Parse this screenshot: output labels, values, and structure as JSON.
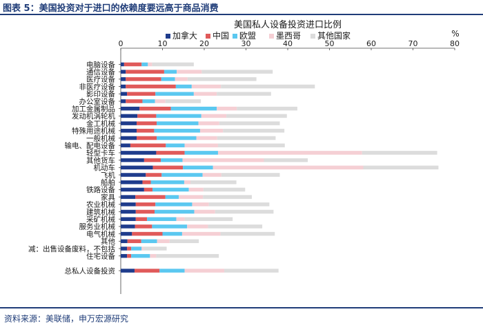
{
  "header": {
    "title": "图表 5：美国投资对于进口的依赖度要远高于商品消费"
  },
  "footer": {
    "source": "资料来源：美联储，申万宏源研究"
  },
  "chart_data": {
    "type": "bar",
    "orientation": "horizontal",
    "stacked": true,
    "title": "美国私人设备投资进口比例",
    "unit": "%",
    "xlim": [
      0,
      80
    ],
    "xticks": [
      0,
      10,
      20,
      30,
      40,
      50,
      60,
      70,
      80
    ],
    "grid": false,
    "legend_position": "top",
    "categories": [
      "电脑设备",
      "通信设备",
      "医疗设备",
      "非医疗设备",
      "影印设备",
      "办公室设备",
      "加工金属制品",
      "发动机涡轮机",
      "金工机械",
      "特殊用途机械",
      "一般机械",
      "输电、配电设备",
      "轻型卡车",
      "其他货车",
      "机动车",
      "飞机",
      "船舶",
      "铁路设备",
      "家具",
      "农业机械",
      "建筑机械",
      "采矿机械",
      "服务业机械",
      "电气机械",
      "其他",
      "减：出售设备废料，不包括",
      "住宅设备",
      "",
      "总私人设备投资"
    ],
    "series": [
      {
        "name": "加拿大",
        "color": "#1f3c8c",
        "values": [
          0.8,
          1.2,
          1.2,
          1.2,
          1.5,
          1.2,
          4.5,
          4.0,
          3.8,
          3.8,
          3.8,
          2.3,
          8.5,
          5.6,
          7.7,
          6.0,
          5.2,
          5.6,
          3.5,
          3.6,
          3.6,
          3.6,
          3.4,
          2.7,
          1.6,
          1.5,
          1.5,
          null,
          3.3
        ]
      },
      {
        "name": "中国",
        "color": "#e05a5a",
        "values": [
          4.2,
          9.2,
          8.5,
          12.0,
          6.8,
          4.0,
          7.5,
          4.5,
          4.8,
          4.2,
          4.8,
          8.5,
          6.8,
          4.0,
          7.2,
          3.8,
          2.0,
          2.0,
          7.2,
          4.7,
          4.5,
          2.7,
          4.1,
          7.3,
          3.3,
          1.0,
          1.0,
          null,
          6.0
        ]
      },
      {
        "name": "欧盟",
        "color": "#5bc8f0",
        "values": [
          1.5,
          3.0,
          3.3,
          3.8,
          9.2,
          3.0,
          11.0,
          10.8,
          10.0,
          11.0,
          9.5,
          4.5,
          8.0,
          5.2,
          7.2,
          9.8,
          8.0,
          8.7,
          3.2,
          8.8,
          9.5,
          7.0,
          8.4,
          4.7,
          3.8,
          2.5,
          4.5,
          null,
          6.0
        ]
      },
      {
        "name": "墨西哥",
        "color": "#f5cfd4",
        "values": [
          1.0,
          6.0,
          3.0,
          7.0,
          5.5,
          2.5,
          4.8,
          6.0,
          5.0,
          5.5,
          5.0,
          8.0,
          34.5,
          19.5,
          36.0,
          4.5,
          1.5,
          3.5,
          5.8,
          4.0,
          5.0,
          2.0,
          5.0,
          9.2,
          3.0,
          0.5,
          1.5,
          null,
          9.5
        ]
      },
      {
        "name": "其他国家",
        "color": "#dcdcdc",
        "values": [
          10.0,
          17.0,
          16.5,
          22.5,
          13.0,
          8.5,
          14.5,
          14.5,
          14.5,
          14.7,
          14.0,
          16.0,
          18.0,
          10.5,
          18.0,
          14.0,
          11.0,
          10.0,
          11.7,
          14.5,
          14.0,
          11.5,
          13.0,
          13.0,
          7.0,
          5.5,
          15.0,
          null,
          13.0
        ]
      }
    ]
  }
}
